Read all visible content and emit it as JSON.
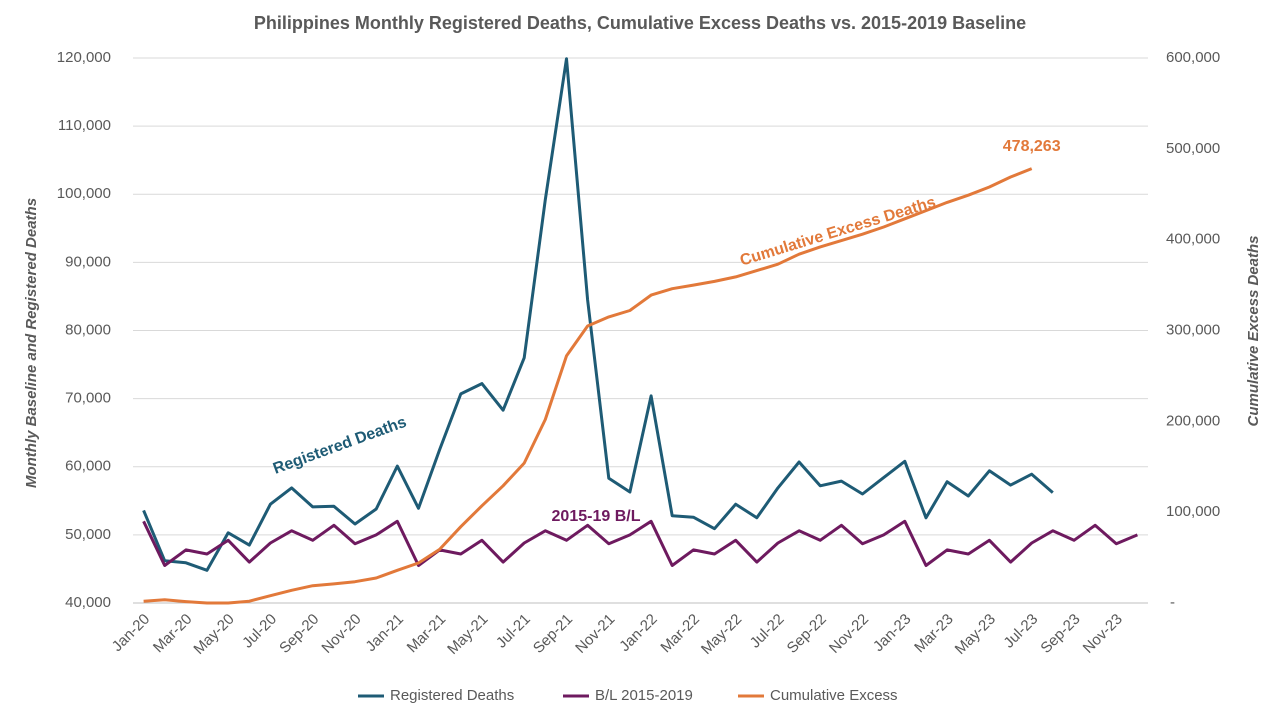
{
  "chart_data": {
    "type": "line",
    "title": "Philippines Monthly Registered Deaths, Cumulative Excess Deaths vs. 2015-2019 Baseline",
    "y_label": "Monthly Baseline and Registered Deaths",
    "y2_label": "Cumulative Excess Deaths",
    "categories": [
      "Jan-20",
      null,
      "Mar-20",
      null,
      "May-20",
      null,
      "Jul-20",
      null,
      "Sep-20",
      null,
      "Nov-20",
      null,
      "Jan-21",
      null,
      "Mar-21",
      null,
      "May-21",
      null,
      "Jul-21",
      null,
      "Sep-21",
      null,
      "Nov-21",
      null,
      "Jan-22",
      null,
      "Mar-22",
      null,
      "May-22",
      null,
      "Jul-22",
      null,
      "Sep-22",
      null,
      "Nov-22",
      null,
      "Jan-23",
      null,
      "Mar-23",
      null,
      "May-23",
      null,
      "Jul-23",
      null,
      "Sep-23",
      null,
      "Nov-23",
      null
    ],
    "series": [
      {
        "name": "Registered Deaths",
        "color": "#1e5b75",
        "values": [
          53600,
          46200,
          45900,
          44800,
          50300,
          48500,
          54500,
          56900,
          54100,
          54200,
          51600,
          53800,
          60100,
          53900,
          62500,
          70700,
          72200,
          68300,
          76000,
          99200,
          119900,
          84500,
          58300,
          56300,
          70400,
          52800,
          52600,
          50900,
          54500,
          52500,
          56900,
          60700,
          57200,
          57900,
          56000,
          58400,
          60800,
          52500,
          57800,
          55700,
          59400,
          57300,
          58900,
          56200,
          null,
          null,
          null,
          null
        ]
      },
      {
        "name": "B/L 2015-2019",
        "color": "#6e1a5f",
        "values": [
          52000,
          45500,
          47800,
          47200,
          49200,
          46000,
          48800,
          50600,
          49200,
          51400,
          48700,
          50000,
          52000,
          45500,
          47800,
          47200,
          49200,
          46000,
          48800,
          50600,
          49200,
          51400,
          48700,
          50000,
          52000,
          45500,
          47800,
          47200,
          49200,
          46000,
          48800,
          50600,
          49200,
          51400,
          48700,
          50000,
          52000,
          45500,
          47800,
          47200,
          49200,
          46000,
          48800,
          50600,
          49200,
          51400,
          48700,
          50000
        ]
      },
      {
        "name": "Cumulative Excess",
        "color": "#e2793a",
        "axis": "y2",
        "values": [
          2000,
          3500,
          1500,
          0,
          0,
          2000,
          8000,
          14000,
          19000,
          21000,
          23500,
          27500,
          36000,
          44000,
          59000,
          84000,
          107000,
          129000,
          154000,
          202000,
          272000,
          305000,
          315000,
          322000,
          339000,
          346000,
          350000,
          354000,
          359000,
          366000,
          373000,
          384000,
          392000,
          399000,
          406000,
          414000,
          423000,
          432000,
          441000,
          449000,
          458000,
          469000,
          478263,
          null,
          null,
          null,
          null,
          null
        ],
        "value_labels": [
          null,
          null,
          null,
          null,
          null,
          null,
          null,
          null,
          null,
          null,
          null,
          null,
          null,
          null,
          null,
          null,
          null,
          null,
          null,
          null,
          null,
          null,
          null,
          null,
          null,
          null,
          null,
          null,
          null,
          null,
          null,
          null,
          null,
          null,
          null,
          null,
          null,
          null,
          null,
          null,
          null,
          null,
          "478,263",
          null,
          null,
          null,
          null,
          null
        ]
      }
    ],
    "annotations": [
      {
        "text": "Registered Deaths",
        "color": "#1e5b75"
      },
      {
        "text": "Cumulative Excess Deaths",
        "color": "#e2793a"
      },
      {
        "text": "2015-19 B/L",
        "color": "#6e1a5f"
      }
    ],
    "ylim": [
      40000,
      120000
    ],
    "yticks": [
      {
        "value": 40000,
        "label": "40,000"
      },
      {
        "value": 50000,
        "label": "50,000"
      },
      {
        "value": 60000,
        "label": "60,000"
      },
      {
        "value": 70000,
        "label": "70,000"
      },
      {
        "value": 80000,
        "label": "80,000"
      },
      {
        "value": 90000,
        "label": "90,000"
      },
      {
        "value": 100000,
        "label": "100,000"
      },
      {
        "value": 110000,
        "label": "110,000"
      },
      {
        "value": 120000,
        "label": "120,000"
      }
    ],
    "y2lim": [
      0,
      600000
    ],
    "y2ticks": [
      {
        "value": 0,
        "label": "-"
      },
      {
        "value": 100000,
        "label": "100,000"
      },
      {
        "value": 200000,
        "label": "200,000"
      },
      {
        "value": 300000,
        "label": "300,000"
      },
      {
        "value": 400000,
        "label": "400,000"
      },
      {
        "value": 500000,
        "label": "500,000"
      },
      {
        "value": 600000,
        "label": "600,000"
      }
    ],
    "grid": true,
    "legend": "bottom"
  }
}
